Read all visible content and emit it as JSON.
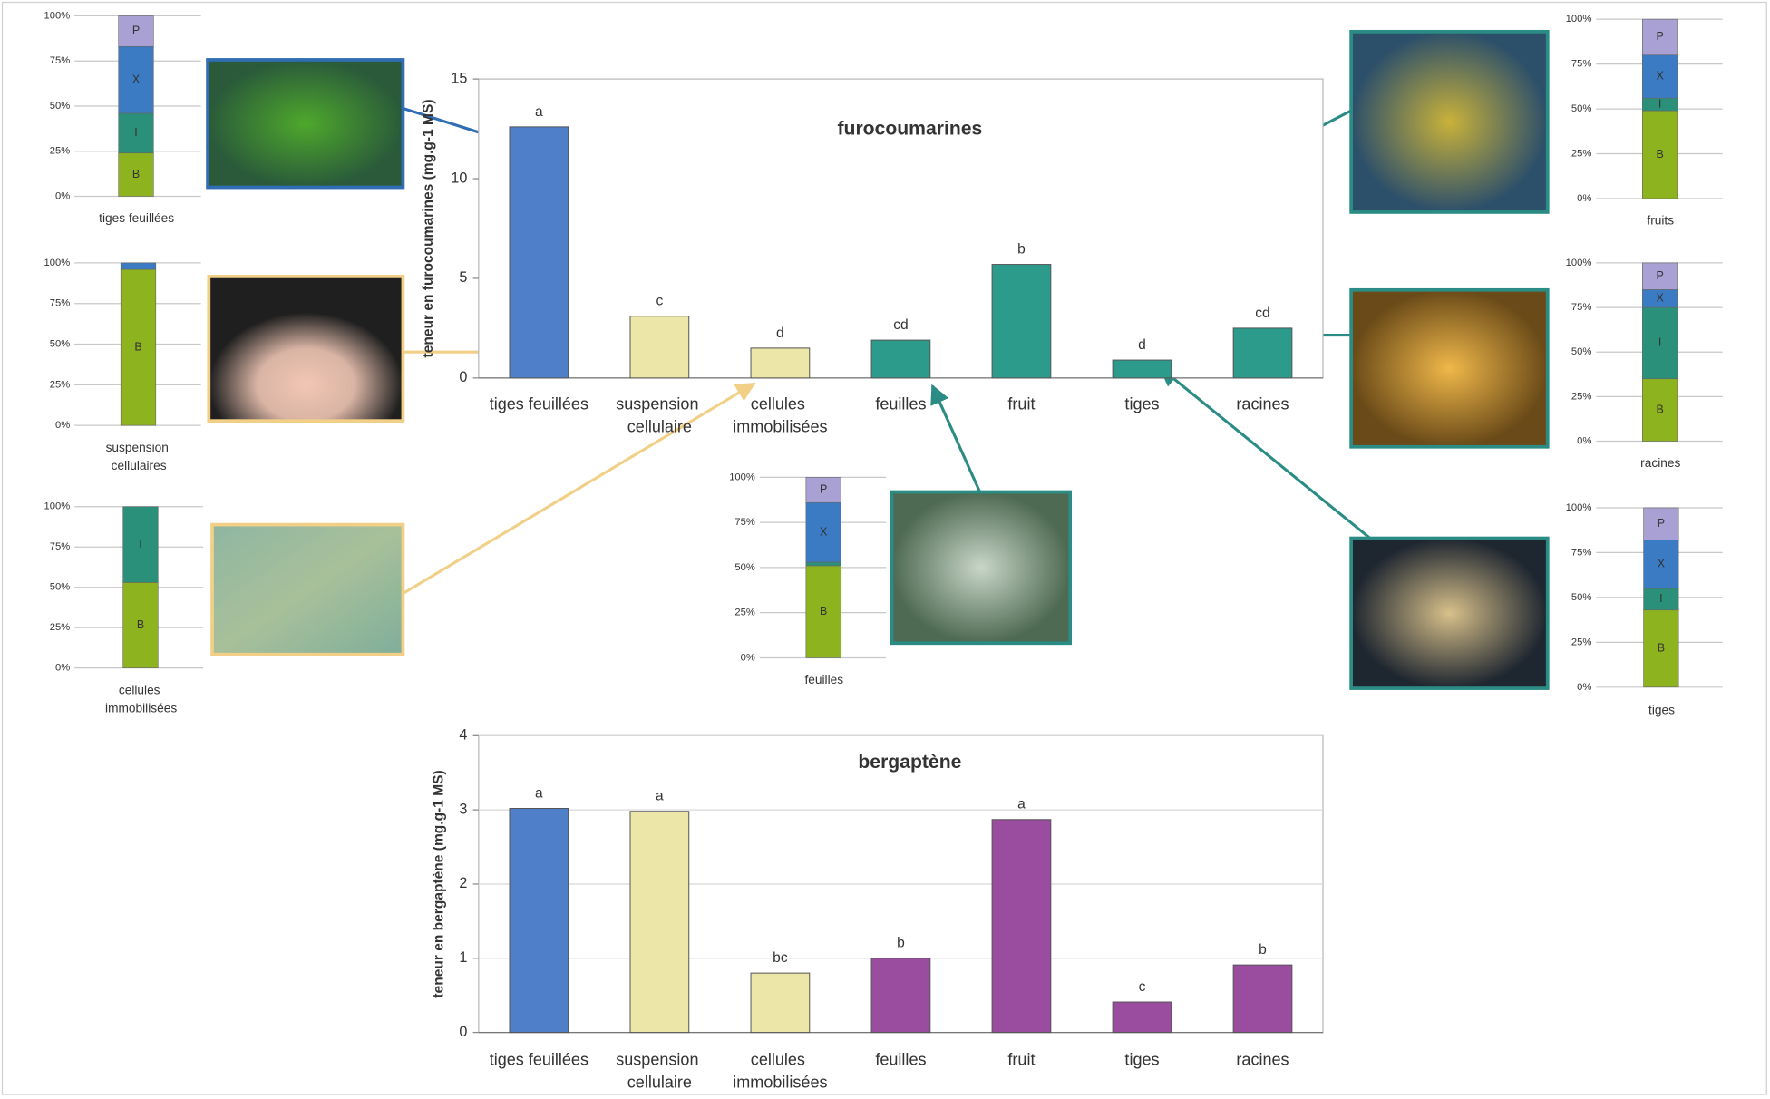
{
  "chart_data": [
    {
      "type": "bar",
      "title": "furocoumarines",
      "ylabel": "teneur en furocoumarines (mg.g-1 MS)",
      "categories": [
        "tiges feuillées",
        "suspension cellulaire",
        "cellules immobilisées",
        "feuilles",
        "fruit",
        "tiges",
        "racines"
      ],
      "values": [
        12.6,
        3.1,
        1.5,
        1.9,
        5.7,
        0.9,
        2.5
      ],
      "annotations": [
        "a",
        "c",
        "d",
        "cd",
        "b",
        "d",
        "cd"
      ],
      "colors": [
        "#4f7fc8",
        "#ece6a8",
        "#ece6a8",
        "#2d9b8c",
        "#2d9b8c",
        "#2d9b8c",
        "#2d9b8c"
      ],
      "ylim": [
        0,
        15
      ],
      "yticks": [
        0,
        5,
        10,
        15
      ],
      "grid": false
    },
    {
      "type": "bar",
      "title": "bergaptène",
      "ylabel": "teneur en bergaptène (mg.g-1 MS)",
      "categories": [
        "tiges feuillées",
        "suspension cellulaire",
        "cellules immobilisées",
        "feuilles",
        "fruit",
        "tiges",
        "racines"
      ],
      "values": [
        3.02,
        2.98,
        0.8,
        1.0,
        2.87,
        0.41,
        0.91
      ],
      "annotations": [
        "a",
        "a",
        "bc",
        "b",
        "a",
        "c",
        "b"
      ],
      "colors": [
        "#4f7fc8",
        "#ece6a8",
        "#ece6a8",
        "#9a4c9e",
        "#9a4c9e",
        "#9a4c9e",
        "#9a4c9e"
      ],
      "ylim": [
        0,
        4
      ],
      "yticks": [
        0,
        1,
        2,
        3,
        4
      ],
      "grid": true
    },
    {
      "type": "stacked_bar",
      "categories": [
        "tiges feuillées"
      ],
      "series": [
        {
          "name": "B",
          "color": "#8db31f",
          "values": [
            24
          ]
        },
        {
          "name": "I",
          "color": "#2a9079",
          "values": [
            22
          ]
        },
        {
          "name": "X",
          "color": "#3b7bc4",
          "values": [
            37
          ]
        },
        {
          "name": "P",
          "color": "#a9a0d4",
          "values": [
            17
          ]
        }
      ],
      "ylim": [
        0,
        100
      ],
      "yticks": [
        {
          "value": 0,
          "label": "0%"
        },
        {
          "value": 25,
          "label": "25%"
        },
        {
          "value": 50,
          "label": "50%"
        },
        {
          "value": 75,
          "label": "75%"
        },
        {
          "value": 100,
          "label": "100%"
        }
      ]
    },
    {
      "type": "stacked_bar",
      "categories": [
        "suspension cellulaires"
      ],
      "series": [
        {
          "name": "B",
          "color": "#8db31f",
          "values": [
            96
          ]
        },
        {
          "color": "#3b7bc4",
          "values": [
            4
          ]
        }
      ],
      "ylim": [
        0,
        100
      ],
      "yticks": [
        {
          "value": 0,
          "label": "0%"
        },
        {
          "value": 25,
          "label": "25%"
        },
        {
          "value": 50,
          "label": "50%"
        },
        {
          "value": 75,
          "label": "75%"
        },
        {
          "value": 100,
          "label": "100%"
        }
      ]
    },
    {
      "type": "stacked_bar",
      "categories": [
        "cellules immobilisées"
      ],
      "series": [
        {
          "name": "B",
          "color": "#8db31f",
          "values": [
            53
          ]
        },
        {
          "name": "I",
          "color": "#2a9079",
          "values": [
            47
          ]
        }
      ],
      "ylim": [
        0,
        100
      ],
      "yticks": [
        {
          "value": 0,
          "label": "0%"
        },
        {
          "value": 25,
          "label": "25%"
        },
        {
          "value": 50,
          "label": "50%"
        },
        {
          "value": 75,
          "label": "75%"
        },
        {
          "value": 100,
          "label": "100%"
        }
      ]
    },
    {
      "type": "stacked_bar",
      "categories": [
        "feuilles"
      ],
      "series": [
        {
          "name": "B",
          "color": "#8db31f",
          "values": [
            51
          ]
        },
        {
          "color": "#2a9079",
          "values": [
            2
          ]
        },
        {
          "name": "X",
          "color": "#3b7bc4",
          "values": [
            33
          ]
        },
        {
          "name": "P",
          "color": "#a9a0d4",
          "values": [
            14
          ]
        }
      ],
      "ylim": [
        0,
        100
      ],
      "yticks": [
        {
          "value": 0,
          "label": "0%"
        },
        {
          "value": 25,
          "label": "25%"
        },
        {
          "value": 50,
          "label": "50%"
        },
        {
          "value": 75,
          "label": "75%"
        },
        {
          "value": 100,
          "label": "100%"
        }
      ]
    },
    {
      "type": "stacked_bar",
      "categories": [
        "fruits"
      ],
      "series": [
        {
          "name": "B",
          "color": "#8db31f",
          "values": [
            49
          ]
        },
        {
          "name": "I",
          "color": "#2a9079",
          "values": [
            7
          ]
        },
        {
          "name": "X",
          "color": "#3b7bc4",
          "values": [
            24
          ]
        },
        {
          "name": "P",
          "color": "#a9a0d4",
          "values": [
            20
          ]
        }
      ],
      "ylim": [
        0,
        100
      ],
      "yticks": [
        {
          "value": 0,
          "label": "0%"
        },
        {
          "value": 25,
          "label": "25%"
        },
        {
          "value": 50,
          "label": "50%"
        },
        {
          "value": 75,
          "label": "75%"
        },
        {
          "value": 100,
          "label": "100%"
        }
      ]
    },
    {
      "type": "stacked_bar",
      "categories": [
        "racines"
      ],
      "series": [
        {
          "name": "B",
          "color": "#8db31f",
          "values": [
            35
          ]
        },
        {
          "name": "I",
          "color": "#2a9079",
          "values": [
            40
          ]
        },
        {
          "name": "X",
          "color": "#3b7bc4",
          "values": [
            10
          ]
        },
        {
          "name": "P",
          "color": "#a9a0d4",
          "values": [
            15
          ]
        }
      ],
      "ylim": [
        0,
        100
      ],
      "yticks": [
        {
          "value": 0,
          "label": "0%"
        },
        {
          "value": 25,
          "label": "25%"
        },
        {
          "value": 50,
          "label": "50%"
        },
        {
          "value": 75,
          "label": "75%"
        },
        {
          "value": 100,
          "label": "100%"
        }
      ]
    },
    {
      "type": "stacked_bar",
      "categories": [
        "tiges"
      ],
      "series": [
        {
          "name": "B",
          "color": "#8db31f",
          "values": [
            43
          ]
        },
        {
          "name": "I",
          "color": "#2a9079",
          "values": [
            12
          ]
        },
        {
          "name": "X",
          "color": "#3b7bc4",
          "values": [
            27
          ]
        },
        {
          "name": "P",
          "color": "#a9a0d4",
          "values": [
            18
          ]
        }
      ],
      "ylim": [
        0,
        100
      ],
      "yticks": [
        {
          "value": 0,
          "label": "0%"
        },
        {
          "value": 25,
          "label": "25%"
        },
        {
          "value": 50,
          "label": "50%"
        },
        {
          "value": 75,
          "label": "75%"
        },
        {
          "value": 100,
          "label": "100%"
        }
      ]
    }
  ]
}
